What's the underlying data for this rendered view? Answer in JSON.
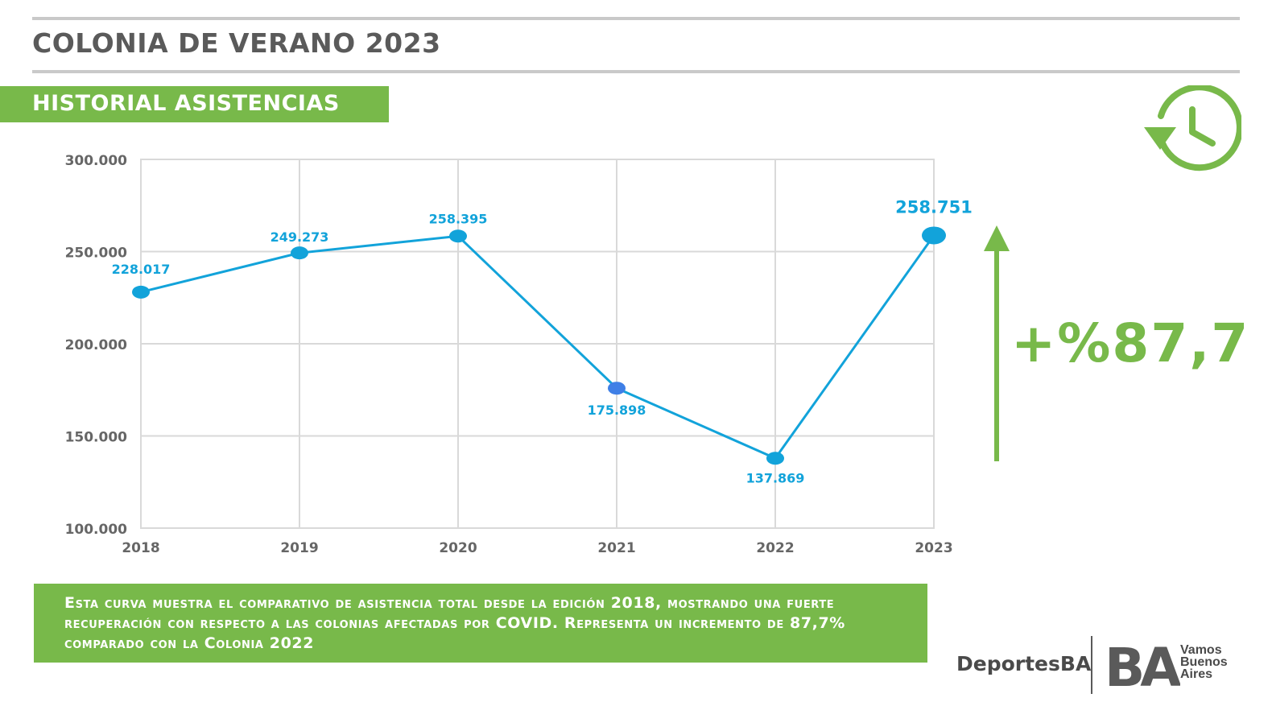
{
  "header": {
    "title": "COLONIA DE VERANO 2023"
  },
  "section": {
    "label": "HISTORIAL ASISTENCIAS"
  },
  "highlight": {
    "percent_label": "+%87,7"
  },
  "note": {
    "text": "Esta curva muestra el comparativo de asistencia total desde la edición 2018, mostrando una fuerte recuperación con respecto a las colonias afectadas por COVID. Representa un incremento de 87,7% comparado con la Colonia 2022"
  },
  "footer": {
    "brand": "DeportesBA",
    "logo_text": "BA",
    "tagline": [
      "Vamos",
      "Buenos",
      "Aires"
    ]
  },
  "colors": {
    "accent_green": "#78b94a",
    "line_blue": "#12a3da",
    "highlight_point": "#3f7fe6",
    "grid": "#d9d9d9",
    "text_gray": "#5a5a5a"
  },
  "icons": {
    "history": "history-clock-icon",
    "up_arrow": "arrow-up-icon"
  },
  "chart_data": {
    "type": "line",
    "x": [
      "2018",
      "2019",
      "2020",
      "2021",
      "2022",
      "2023"
    ],
    "series": [
      {
        "values": [
          228017,
          249273,
          258395,
          175898,
          137869,
          258751
        ]
      }
    ],
    "data_labels": [
      "228.017",
      "249.273",
      "258.395",
      "175.898",
      "137.869",
      "258.751"
    ],
    "ylim": [
      100000,
      300000
    ],
    "yticks": [
      100000,
      150000,
      200000,
      250000,
      300000
    ],
    "ytick_labels": [
      "100.000",
      "150.000",
      "200.000",
      "250.000",
      "300.000"
    ],
    "grid": true,
    "legend": "none"
  }
}
